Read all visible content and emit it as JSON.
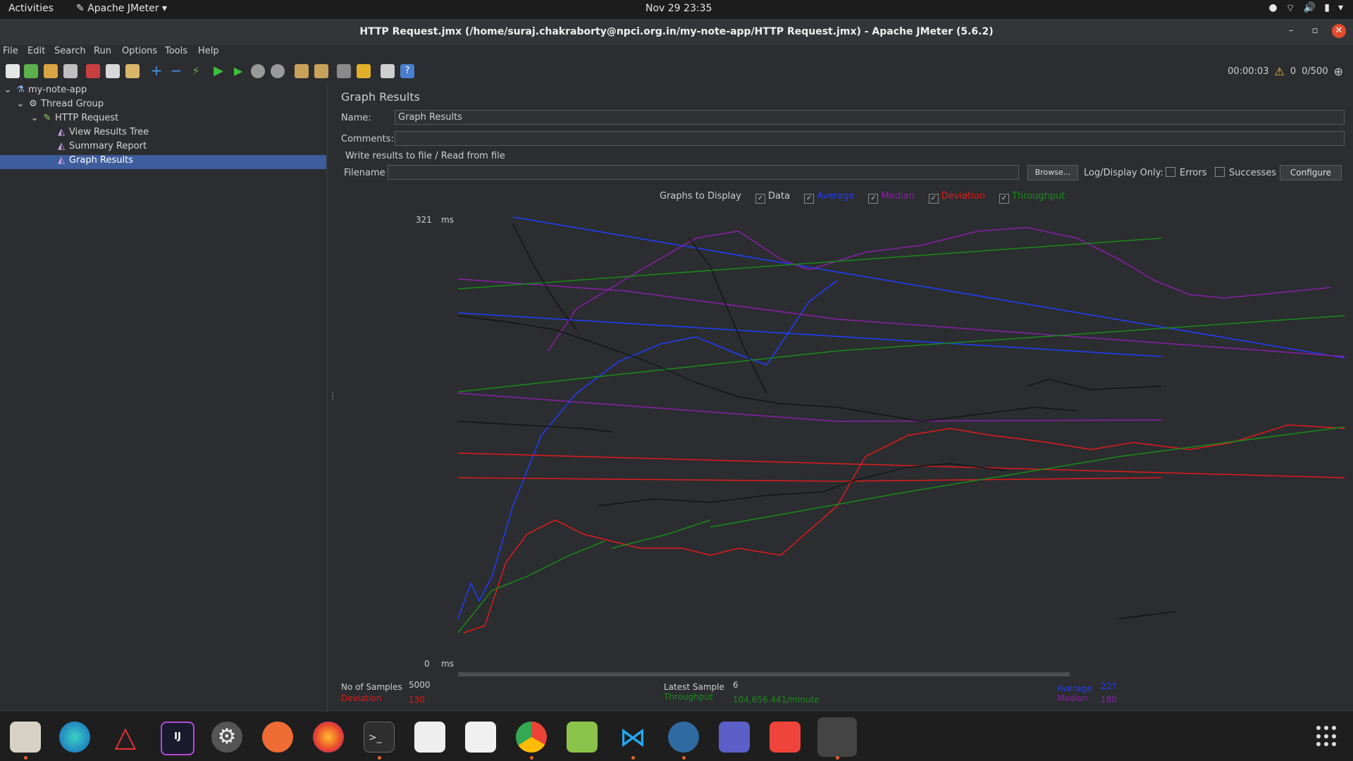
{
  "topbar": {
    "activities": "Activities",
    "app_name": "Apache JMeter",
    "clock": "Nov 29  23:35"
  },
  "window": {
    "title": "HTTP Request.jmx (/home/suraj.chakraborty@npci.org.in/my-note-app/HTTP Request.jmx) - Apache JMeter (5.6.2)"
  },
  "menu": [
    "File",
    "Edit",
    "Search",
    "Run",
    "Options",
    "Tools",
    "Help"
  ],
  "toolbar_status": {
    "elapsed": "00:00:03",
    "errors": "0",
    "threads": "0/500"
  },
  "tree": {
    "root": "my-note-app",
    "thread_group": "Thread Group",
    "sampler": "HTTP Request",
    "listeners": [
      "View Results Tree",
      "Summary Report",
      "Graph Results"
    ],
    "selected": "Graph Results"
  },
  "panel": {
    "heading": "Graph Results",
    "name_label": "Name:",
    "name_value": "Graph Results",
    "comments_label": "Comments:",
    "comments_value": "",
    "file_section": "Write results to file / Read from file",
    "filename_label": "Filename",
    "filename_value": "",
    "browse_label": "Browse...",
    "log_display_label": "Log/Display Only:",
    "errors_label": "Errors",
    "successes_label": "Successes",
    "configure_label": "Configure"
  },
  "graphs_to_display": {
    "label": "Graphs to Display",
    "items": [
      {
        "label": "Data",
        "checked": true,
        "color": "#cfcfcf"
      },
      {
        "label": "Average",
        "checked": true,
        "color": "#1f3cff"
      },
      {
        "label": "Median",
        "checked": true,
        "color": "#8a1fa8"
      },
      {
        "label": "Deviation",
        "checked": true,
        "color": "#e01b1b"
      },
      {
        "label": "Throughput",
        "checked": true,
        "color": "#1a8a1a"
      }
    ]
  },
  "chart_data": {
    "type": "line",
    "y_top_label": "321",
    "y_bottom_label": "0",
    "y_unit": "ms",
    "ylim": [
      0,
      321
    ],
    "series": [
      {
        "name": "Average",
        "color": "#1f3cff"
      },
      {
        "name": "Median",
        "color": "#8a1fa8"
      },
      {
        "name": "Deviation",
        "color": "#e01b1b"
      },
      {
        "name": "Throughput",
        "color": "#1a8a1a"
      },
      {
        "name": "Data",
        "color": "#111111"
      }
    ]
  },
  "stats": {
    "no_of_samples_label": "No of Samples",
    "no_of_samples": "5000",
    "latest_sample_label": "Latest Sample",
    "latest_sample": "6",
    "average_label": "Average",
    "average": "227",
    "deviation_label": "Deviation",
    "deviation": "130",
    "throughput_label": "Throughput",
    "throughput": "104,656.441/minute",
    "median_label": "Median",
    "median": "180"
  },
  "dock": [
    "files-icon",
    "edge-beta-icon",
    "angular-icon",
    "intellij-icon",
    "settings-icon",
    "postman-icon",
    "firefox-icon",
    "terminal-icon",
    "document-viewer-icon",
    "text-editor-icon",
    "chrome-icon",
    "gedit-icon",
    "vscode-icon",
    "vpn-icon",
    "teams-icon",
    "anydesk-icon",
    "jmeter-icon",
    "app-grid-icon"
  ]
}
